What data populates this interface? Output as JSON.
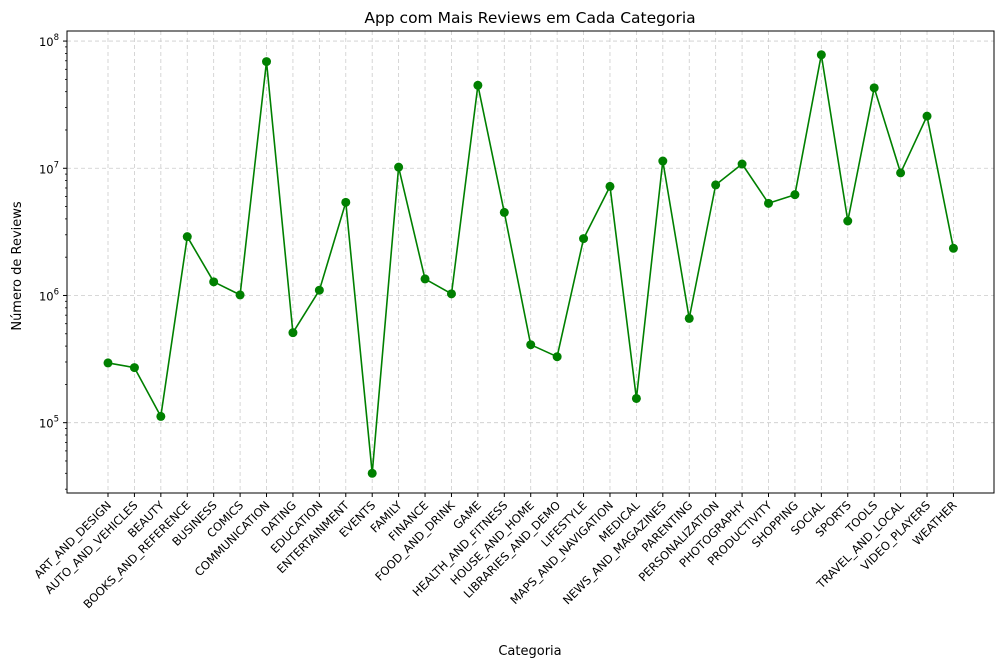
{
  "chart_data": {
    "type": "line",
    "title": "App com Mais Reviews em Cada Categoria",
    "xlabel": "Categoria",
    "ylabel": "Número de Reviews",
    "y_scale": "log",
    "ylim": [
      28000,
      120000000
    ],
    "y_ticks": [
      {
        "value": 100000,
        "base": "10",
        "exp": "5"
      },
      {
        "value": 1000000,
        "base": "10",
        "exp": "6"
      },
      {
        "value": 10000000,
        "base": "10",
        "exp": "7"
      },
      {
        "value": 100000000,
        "base": "10",
        "exp": "8"
      }
    ],
    "grid": true,
    "line_color": "#008000",
    "marker": "circle",
    "categories": [
      "ART_AND_DESIGN",
      "AUTO_AND_VEHICLES",
      "BEAUTY",
      "BOOKS_AND_REFERENCE",
      "BUSINESS",
      "COMICS",
      "COMMUNICATION",
      "DATING",
      "EDUCATION",
      "ENTERTAINMENT",
      "EVENTS",
      "FAMILY",
      "FINANCE",
      "FOOD_AND_DRINK",
      "GAME",
      "HEALTH_AND_FITNESS",
      "HOUSE_AND_HOME",
      "LIBRARIES_AND_DEMO",
      "LIFESTYLE",
      "MAPS_AND_NAVIGATION",
      "MEDICAL",
      "NEWS_AND_MAGAZINES",
      "PARENTING",
      "PERSONALIZATION",
      "PHOTOGRAPHY",
      "PRODUCTIVITY",
      "SHOPPING",
      "SOCIAL",
      "SPORTS",
      "TOOLS",
      "TRAVEL_AND_LOCAL",
      "VIDEO_PLAYERS",
      "WEATHER"
    ],
    "values": [
      295000,
      271000,
      112000,
      2900000,
      1280000,
      1010000,
      69000000,
      510000,
      1100000,
      5400000,
      40000,
      10200000,
      1350000,
      1030000,
      44900000,
      4500000,
      410000,
      330000,
      2800000,
      7200000,
      155000,
      11400000,
      660000,
      7400000,
      10800000,
      5300000,
      6200000,
      78000000,
      3850000,
      42900000,
      9200000,
      25700000,
      2350000
    ]
  }
}
